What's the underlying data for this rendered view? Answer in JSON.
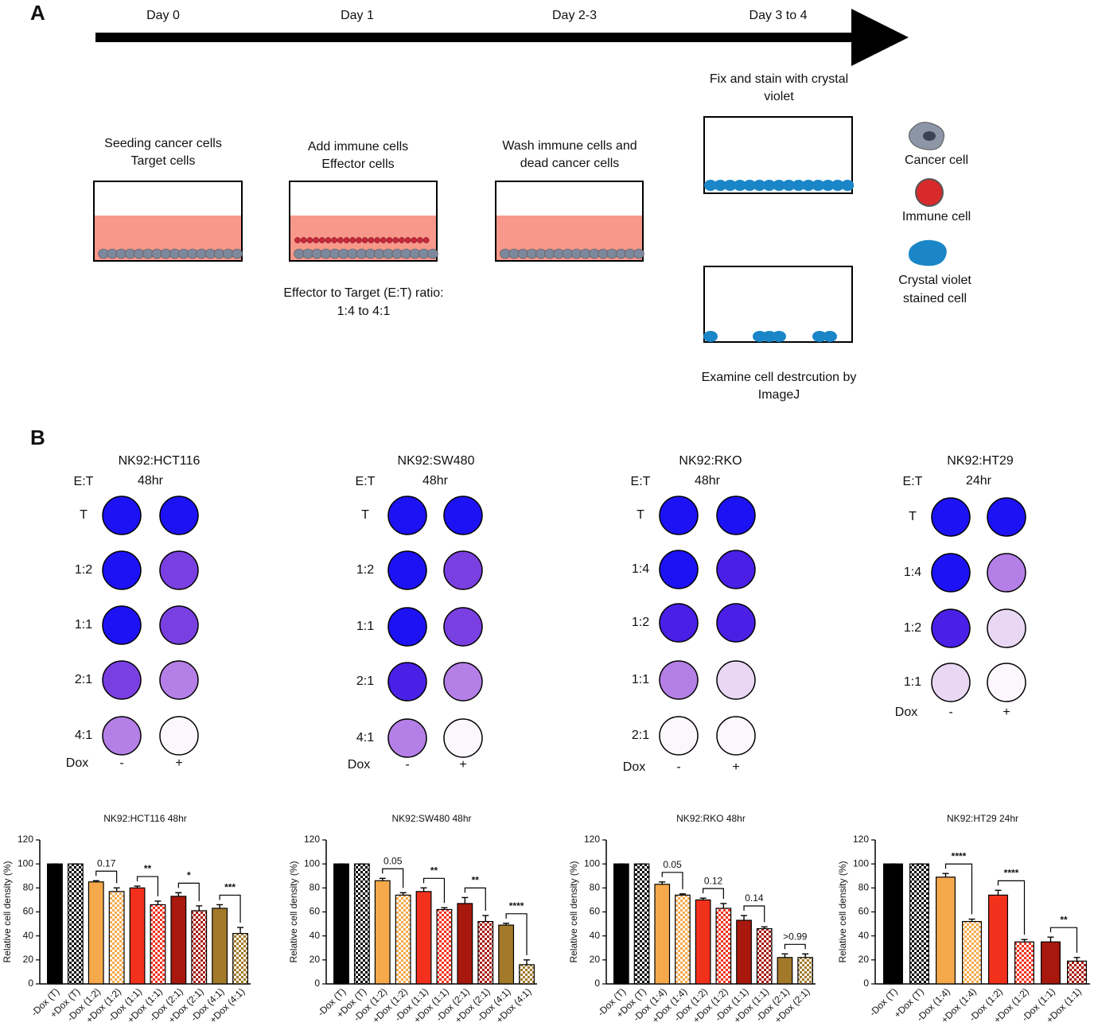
{
  "panel_a": {
    "label": "A",
    "timeline": [
      "Day 0",
      "Day 1",
      "Day 2-3",
      "Day 3 to 4"
    ],
    "steps": [
      [
        "Seeding cancer cells",
        "Target cells"
      ],
      [
        "Add immune cells",
        "Effector cells"
      ],
      [
        "Wash immune cells and",
        "dead cancer cells"
      ]
    ],
    "ratio_note": [
      "Effector to Target (E:T) ratio:",
      "1:4 to 4:1"
    ],
    "fix_stain": [
      "Fix and stain with crystal",
      "violet"
    ],
    "examine": [
      "Examine cell destrcution by",
      "ImageJ"
    ],
    "legend": [
      [
        "Cancer cell"
      ],
      [
        "Immune cell"
      ],
      [
        "Crystal violet",
        "stained cell"
      ]
    ]
  },
  "panel_b": {
    "label": "B",
    "plates": [
      {
        "title": "NK92:HCT116",
        "et": "E:T",
        "time": "48hr",
        "rows": [
          "T",
          "1:2",
          "1:1",
          "2:1",
          "4:1"
        ],
        "dox": "Dox",
        "minus": "-",
        "plus": "+"
      },
      {
        "title": "NK92:SW480",
        "et": "E:T",
        "time": "48hr",
        "rows": [
          "T",
          "1:2",
          "1:1",
          "2:1",
          "4:1"
        ],
        "dox": "Dox",
        "minus": "-",
        "plus": "+"
      },
      {
        "title": "NK92:RKO",
        "et": "E:T",
        "time": "48hr",
        "rows": [
          "T",
          "1:4",
          "1:2",
          "1:1",
          "2:1"
        ],
        "dox": "Dox",
        "minus": "-",
        "plus": "+"
      },
      {
        "title": "NK92:HT29",
        "et": "E:T",
        "time": "24hr",
        "rows": [
          "T",
          "1:4",
          "1:2",
          "1:1"
        ],
        "dox": "Dox",
        "minus": "-",
        "plus": "+"
      }
    ]
  },
  "chart_data": [
    {
      "type": "bar",
      "title": "NK92:HCT116 48hr",
      "ylabel": "Relative cell density (%)",
      "categories": [
        "-Dox (T)",
        "+Dox (T)",
        "-Dox (1:2)",
        "+Dox (1:2)",
        "-Dox (1:1)",
        "+Dox (1:1)",
        "-Dox (2:1)",
        "+Dox (2:1)",
        "-Dox (4:1)",
        "+Dox (4:1)"
      ],
      "values": [
        100,
        100,
        85,
        77,
        80,
        66,
        73,
        61,
        63,
        42
      ],
      "errors": [
        0,
        0,
        1,
        3,
        1.5,
        3,
        3,
        4,
        3,
        5
      ],
      "colors": [
        "#000000",
        "#000000",
        "#f6a94b",
        "#f6a94b",
        "#f2311c",
        "#f2311c",
        "#a8180d",
        "#a8180d",
        "#a37a2a",
        "#a37a2a"
      ],
      "patterns": [
        "solid",
        "checker",
        "solid",
        "checker",
        "solid",
        "checker",
        "solid",
        "checker",
        "solid",
        "checker"
      ],
      "annotations": [
        {
          "text": "0.17",
          "between": [
            2,
            3
          ]
        },
        {
          "text": "**",
          "between": [
            4,
            5
          ]
        },
        {
          "text": "*",
          "between": [
            6,
            7
          ]
        },
        {
          "text": "***",
          "between": [
            8,
            9
          ]
        }
      ],
      "ylim": [
        0,
        120
      ],
      "yticks": [
        0,
        20,
        40,
        60,
        80,
        100,
        120
      ]
    },
    {
      "type": "bar",
      "title": "NK92:SW480 48hr",
      "ylabel": "Relative cell density (%)",
      "categories": [
        "-Dox (T)",
        "+Dox (T)",
        "-Dox (1:2)",
        "+Dox (1:2)",
        "-Dox (1:1)",
        "+Dox (1:1)",
        "-Dox (2:1)",
        "+Dox (2:1)",
        "-Dox (4:1)",
        "+Dox (4:1)"
      ],
      "values": [
        100,
        100,
        86,
        74,
        77,
        62,
        67,
        52,
        49,
        16
      ],
      "errors": [
        0,
        0,
        2,
        2,
        3,
        1.5,
        5,
        5,
        1.5,
        4
      ],
      "colors": [
        "#000000",
        "#000000",
        "#f6a94b",
        "#f6a94b",
        "#f2311c",
        "#f2311c",
        "#a8180d",
        "#a8180d",
        "#a37a2a",
        "#a37a2a"
      ],
      "patterns": [
        "solid",
        "checker",
        "solid",
        "checker",
        "solid",
        "checker",
        "solid",
        "checker",
        "solid",
        "checker"
      ],
      "annotations": [
        {
          "text": "0.05",
          "between": [
            2,
            3
          ]
        },
        {
          "text": "**",
          "between": [
            4,
            5
          ]
        },
        {
          "text": "**",
          "between": [
            6,
            7
          ]
        },
        {
          "text": "****",
          "between": [
            8,
            9
          ]
        }
      ],
      "ylim": [
        0,
        120
      ],
      "yticks": [
        0,
        20,
        40,
        60,
        80,
        100,
        120
      ]
    },
    {
      "type": "bar",
      "title": "NK92:RKO 48hr",
      "ylabel": "Relative cell density (%)",
      "categories": [
        "-Dox (T)",
        "+Dox (T)",
        "-Dox (1:4)",
        "+Dox (1:4)",
        "-Dox (1:2)",
        "+Dox (1:2)",
        "-Dox (1:1)",
        "+Dox (1:1)",
        "-Dox (2:1)",
        "+Dox (2:1)"
      ],
      "values": [
        100,
        100,
        83,
        74,
        70,
        63,
        53,
        46,
        22,
        22
      ],
      "errors": [
        0,
        0,
        2,
        1,
        1.5,
        4,
        4,
        1.5,
        3,
        3
      ],
      "colors": [
        "#000000",
        "#000000",
        "#f6a94b",
        "#f6a94b",
        "#f2311c",
        "#f2311c",
        "#a8180d",
        "#a8180d",
        "#a37a2a",
        "#a37a2a"
      ],
      "patterns": [
        "solid",
        "checker",
        "solid",
        "checker",
        "solid",
        "checker",
        "solid",
        "checker",
        "solid",
        "checker"
      ],
      "annotations": [
        {
          "text": "0.05",
          "between": [
            2,
            3
          ]
        },
        {
          "text": "0.12",
          "between": [
            4,
            5
          ]
        },
        {
          "text": "0.14",
          "between": [
            6,
            7
          ]
        },
        {
          "text": ">0.99",
          "between": [
            8,
            9
          ]
        }
      ],
      "ylim": [
        0,
        120
      ],
      "yticks": [
        0,
        20,
        40,
        60,
        80,
        100,
        120
      ]
    },
    {
      "type": "bar",
      "title": "NK92:HT29 24hr",
      "ylabel": "Relative cell density (%)",
      "categories": [
        "-Dox (T)",
        "+Dox (T)",
        "-Dox (1:4)",
        "+Dox (1:4)",
        "-Dox (1:2)",
        "+Dox (1:2)",
        "-Dox (1:1)",
        "+Dox (1:1)"
      ],
      "values": [
        100,
        100,
        89,
        52,
        74,
        35,
        35,
        19
      ],
      "errors": [
        0,
        0,
        3,
        2,
        4,
        2,
        4,
        3
      ],
      "colors": [
        "#000000",
        "#000000",
        "#f6a94b",
        "#f6a94b",
        "#f2311c",
        "#f2311c",
        "#a8180d",
        "#a8180d"
      ],
      "patterns": [
        "solid",
        "checker",
        "solid",
        "checker",
        "solid",
        "checker",
        "solid",
        "checker"
      ],
      "annotations": [
        {
          "text": "****",
          "between": [
            2,
            3
          ]
        },
        {
          "text": "****",
          "between": [
            4,
            5
          ]
        },
        {
          "text": "**",
          "between": [
            6,
            7
          ]
        }
      ],
      "ylim": [
        0,
        120
      ],
      "yticks": [
        0,
        20,
        40,
        60,
        80,
        100,
        120
      ]
    }
  ]
}
